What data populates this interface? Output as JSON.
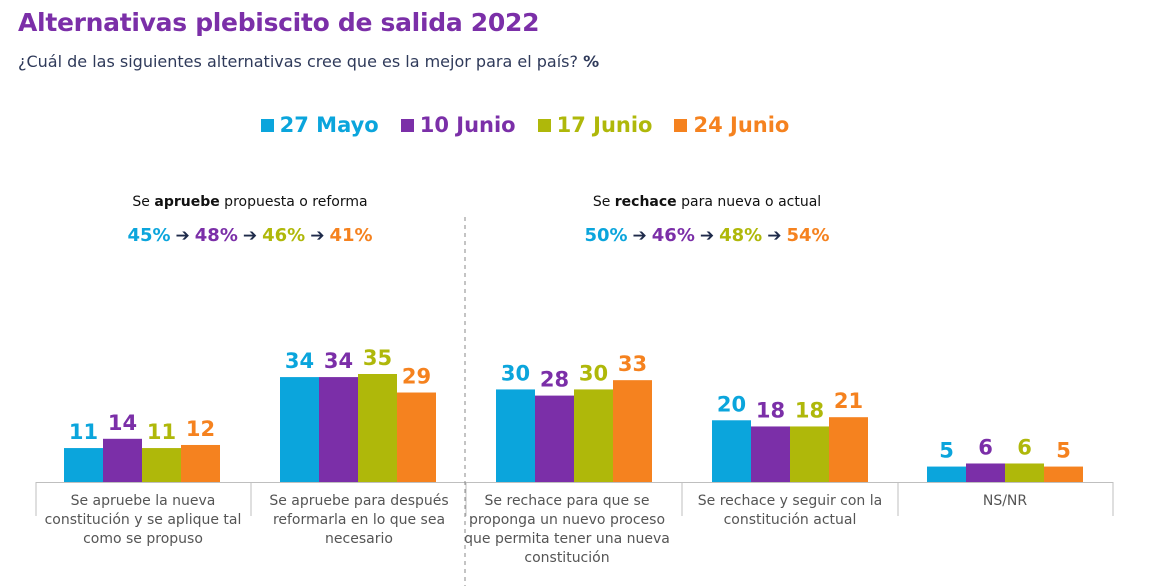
{
  "title": "Alternativas plebiscito de salida 2022",
  "subtitle": "¿Cuál de las siguientes alternativas cree que es la mejor para el país?",
  "subtitle_unit": "%",
  "colors": {
    "27 Mayo": "#0BA5DC",
    "10 Junio": "#7B2FA8",
    "17 Junio": "#AFB80A",
    "24 Junio": "#F5821F"
  },
  "groups": [
    {
      "header_pre": "Se ",
      "header_bold": "apruebe",
      "header_post": " propuesta o reforma",
      "trend": [
        "45%",
        "48%",
        "46%",
        "41%"
      ]
    },
    {
      "header_pre": "Se ",
      "header_bold": "rechace",
      "header_post": " para nueva o actual",
      "trend": [
        "50%",
        "46%",
        "48%",
        "54%"
      ]
    }
  ],
  "chart_data": {
    "type": "bar",
    "categories": [
      "Se apruebe la nueva constitución y se aplique tal como se propuso",
      "Se apruebe para después reformarla en lo que sea necesario",
      "Se rechace para que se proponga un nuevo proceso que permita tener una nueva constitución",
      "Se rechace y seguir con la constitución actual",
      "NS/NR"
    ],
    "series": [
      {
        "name": "27 Mayo",
        "values": [
          11,
          34,
          30,
          20,
          5
        ]
      },
      {
        "name": "10 Junio",
        "values": [
          14,
          34,
          28,
          18,
          6
        ]
      },
      {
        "name": "17 Junio",
        "values": [
          11,
          35,
          30,
          18,
          6
        ]
      },
      {
        "name": "24 Junio",
        "values": [
          12,
          29,
          33,
          21,
          5
        ]
      }
    ],
    "ylim": [
      0,
      35
    ],
    "legend_position": "top-center",
    "data_labels": true
  }
}
